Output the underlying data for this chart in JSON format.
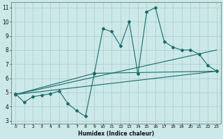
{
  "xlabel": "Humidex (Indice chaleur)",
  "xlim": [
    -0.5,
    23.5
  ],
  "ylim": [
    2.8,
    11.4
  ],
  "xticks": [
    0,
    1,
    2,
    3,
    4,
    5,
    6,
    7,
    8,
    9,
    10,
    11,
    12,
    13,
    14,
    15,
    16,
    17,
    18,
    19,
    20,
    21,
    22,
    23
  ],
  "yticks": [
    3,
    4,
    5,
    6,
    7,
    8,
    9,
    10,
    11
  ],
  "background_color": "#cce8e8",
  "grid_color": "#aacece",
  "line_color": "#1a6b6b",
  "line1_x": [
    0,
    1,
    2,
    3,
    4,
    5,
    6,
    7,
    8,
    9,
    10,
    11,
    12,
    13,
    14,
    15,
    16,
    17,
    18,
    19,
    20,
    21,
    22,
    23
  ],
  "line1_y": [
    4.9,
    4.3,
    4.7,
    4.8,
    4.9,
    5.1,
    4.2,
    3.7,
    3.3,
    6.3,
    9.5,
    9.3,
    8.3,
    10.0,
    6.3,
    10.7,
    11.0,
    8.6,
    8.2,
    8.0,
    8.0,
    7.7,
    6.9,
    6.5
  ],
  "line2_x": [
    0,
    23
  ],
  "line2_y": [
    4.85,
    6.5
  ],
  "line3_x": [
    0,
    23
  ],
  "line3_y": [
    4.85,
    8.0
  ],
  "line4_x": [
    0,
    9,
    23
  ],
  "line4_y": [
    4.85,
    6.35,
    6.5
  ]
}
